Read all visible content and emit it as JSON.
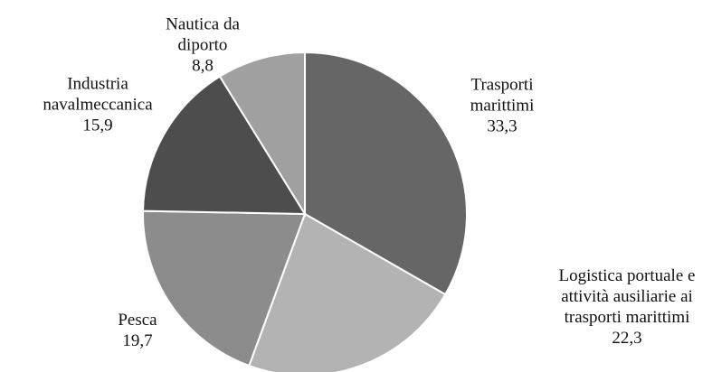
{
  "chart_data": {
    "type": "pie",
    "categories": [
      "Trasporti marittimi",
      "Logistica portuale e attività ausiliarie ai trasporti marittimi",
      "Pesca",
      "Industria navalmeccanica",
      "Nautica da diporto"
    ],
    "values": [
      33.3,
      22.3,
      19.7,
      15.9,
      8.8
    ],
    "value_labels": [
      "33,3",
      "22,3",
      "19,7",
      "15,9",
      "8,8"
    ],
    "colors": [
      "#666666",
      "#b3b3b3",
      "#8c8c8c",
      "#4d4d4d",
      "#a0a0a0"
    ]
  }
}
